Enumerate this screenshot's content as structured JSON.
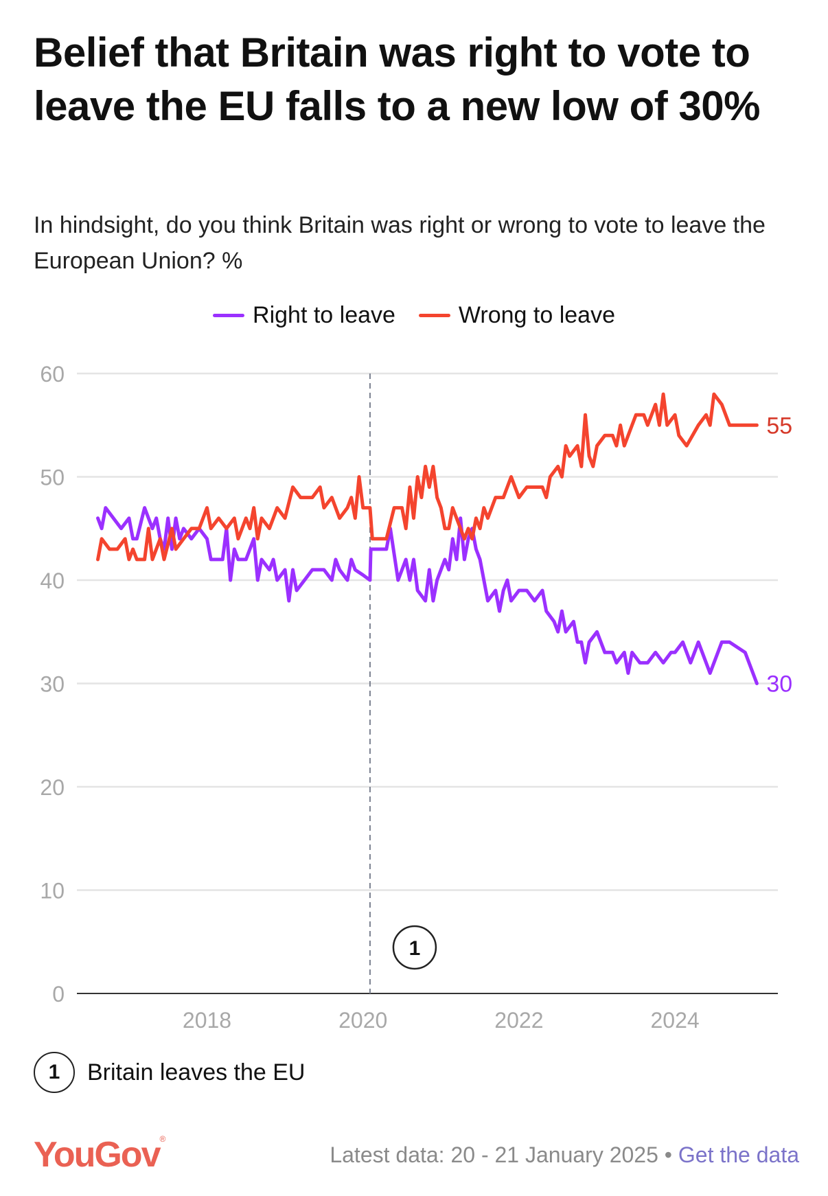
{
  "title": "Belief that Britain was right to vote to leave the EU falls to a new low of 30%",
  "subtitle": "In hindsight, do you think Britain was right or wrong to vote to leave the European Union? %",
  "footnote": {
    "number": "1",
    "text": "Britain leaves the EU"
  },
  "footer": {
    "logo": "YouGov",
    "latest": "Latest data: 20 - 21 January 2025",
    "separator": "•",
    "link": "Get the data"
  },
  "chart_data": {
    "type": "line",
    "title": "Belief that Britain was right to vote to leave the EU falls to a new low of 30%",
    "xlabel": "",
    "ylabel": "%",
    "ylim": [
      0,
      60
    ],
    "xlim": [
      2016.3,
      2025.3
    ],
    "yticks": [
      "0",
      "10",
      "20",
      "30",
      "40",
      "50",
      "60"
    ],
    "xticks": [
      "2018",
      "2020",
      "2022",
      "2024"
    ],
    "grid": true,
    "legend": "top-center",
    "annotations": [
      {
        "label": "1",
        "x": 2020.09,
        "text": "Britain leaves the EU"
      }
    ],
    "series": [
      {
        "name": "Right to leave",
        "color": "#9b30ff",
        "end_label": "30",
        "x": [
          2016.6,
          2016.65,
          2016.7,
          2016.8,
          2016.9,
          2017.0,
          2017.05,
          2017.1,
          2017.2,
          2017.3,
          2017.35,
          2017.4,
          2017.45,
          2017.5,
          2017.55,
          2017.6,
          2017.65,
          2017.7,
          2017.8,
          2017.9,
          2018.0,
          2018.05,
          2018.2,
          2018.25,
          2018.3,
          2018.35,
          2018.4,
          2018.5,
          2018.6,
          2018.65,
          2018.7,
          2018.8,
          2018.85,
          2018.9,
          2019.0,
          2019.05,
          2019.1,
          2019.15,
          2019.25,
          2019.35,
          2019.5,
          2019.6,
          2019.65,
          2019.7,
          2019.8,
          2019.85,
          2019.9,
          2020.0,
          2020.09,
          2020.1,
          2020.3,
          2020.35,
          2020.45,
          2020.55,
          2020.6,
          2020.65,
          2020.7,
          2020.8,
          2020.85,
          2020.9,
          2020.95,
          2021.0,
          2021.05,
          2021.1,
          2021.15,
          2021.2,
          2021.25,
          2021.3,
          2021.35,
          2021.4,
          2021.45,
          2021.5,
          2021.55,
          2021.6,
          2021.7,
          2021.75,
          2021.8,
          2021.85,
          2021.9,
          2022.0,
          2022.1,
          2022.2,
          2022.3,
          2022.35,
          2022.45,
          2022.5,
          2022.55,
          2022.6,
          2022.7,
          2022.75,
          2022.8,
          2022.85,
          2022.9,
          2023.0,
          2023.1,
          2023.2,
          2023.25,
          2023.35,
          2023.4,
          2023.45,
          2023.55,
          2023.65,
          2023.75,
          2023.85,
          2023.95,
          2024.0,
          2024.1,
          2024.2,
          2024.3,
          2024.45,
          2024.6,
          2024.7,
          2024.9,
          2025.05
        ],
        "values": [
          46,
          45,
          47,
          46,
          45,
          46,
          44,
          44,
          47,
          45,
          46,
          44,
          43,
          46,
          43,
          46,
          44,
          45,
          44,
          45,
          44,
          42,
          42,
          45,
          40,
          43,
          42,
          42,
          44,
          40,
          42,
          41,
          42,
          40,
          41,
          38,
          41,
          39,
          40,
          41,
          41,
          40,
          42,
          41,
          40,
          42,
          41,
          40.5,
          40,
          43,
          43,
          45,
          40,
          42,
          40,
          42,
          39,
          38,
          41,
          38,
          40,
          41,
          42,
          41,
          44,
          42,
          46,
          42,
          44,
          45,
          43,
          42,
          40,
          38,
          39,
          37,
          39,
          40,
          38,
          39,
          39,
          38,
          39,
          37,
          36,
          35,
          37,
          35,
          36,
          34,
          34,
          32,
          34,
          35,
          33,
          33,
          32,
          33,
          31,
          33,
          32,
          32,
          33,
          32,
          33,
          33,
          34,
          32,
          34,
          31,
          34,
          34,
          33,
          30
        ]
      },
      {
        "name": "Wrong to leave",
        "color": "#f4442e",
        "end_label": "55",
        "x": [
          2016.6,
          2016.65,
          2016.75,
          2016.85,
          2016.95,
          2017.0,
          2017.05,
          2017.1,
          2017.2,
          2017.25,
          2017.3,
          2017.4,
          2017.45,
          2017.55,
          2017.6,
          2017.7,
          2017.8,
          2017.9,
          2018.0,
          2018.05,
          2018.15,
          2018.25,
          2018.35,
          2018.4,
          2018.5,
          2018.55,
          2018.6,
          2018.65,
          2018.7,
          2018.8,
          2018.9,
          2019.0,
          2019.1,
          2019.2,
          2019.35,
          2019.45,
          2019.5,
          2019.6,
          2019.7,
          2019.8,
          2019.85,
          2019.9,
          2019.95,
          2020.0,
          2020.05,
          2020.09,
          2020.12,
          2020.3,
          2020.4,
          2020.5,
          2020.55,
          2020.6,
          2020.65,
          2020.7,
          2020.75,
          2020.8,
          2020.85,
          2020.9,
          2020.95,
          2021.0,
          2021.05,
          2021.1,
          2021.15,
          2021.2,
          2021.25,
          2021.3,
          2021.35,
          2021.4,
          2021.45,
          2021.5,
          2021.55,
          2021.6,
          2021.7,
          2021.8,
          2021.9,
          2022.0,
          2022.1,
          2022.2,
          2022.3,
          2022.35,
          2022.4,
          2022.5,
          2022.55,
          2022.6,
          2022.65,
          2022.75,
          2022.8,
          2022.85,
          2022.9,
          2022.95,
          2023.0,
          2023.1,
          2023.2,
          2023.25,
          2023.3,
          2023.35,
          2023.45,
          2023.5,
          2023.6,
          2023.65,
          2023.75,
          2023.8,
          2023.85,
          2023.9,
          2024.0,
          2024.05,
          2024.15,
          2024.3,
          2024.4,
          2024.45,
          2024.5,
          2024.6,
          2024.7,
          2025.05
        ],
        "values": [
          42,
          44,
          43,
          43,
          44,
          42,
          43,
          42,
          42,
          45,
          42,
          44,
          42,
          45,
          43,
          44,
          45,
          45,
          47,
          45,
          46,
          45,
          46,
          44,
          46,
          45,
          47,
          44,
          46,
          45,
          47,
          46,
          49,
          48,
          48,
          49,
          47,
          48,
          46,
          47,
          48,
          46,
          50,
          47,
          47,
          47,
          44,
          44,
          47,
          47,
          45,
          49,
          46,
          50,
          48,
          51,
          49,
          51,
          48,
          47,
          45,
          45,
          47,
          46,
          45,
          44,
          45,
          44,
          46,
          45,
          47,
          46,
          48,
          48,
          50,
          48,
          49,
          49,
          49,
          48,
          50,
          51,
          50,
          53,
          52,
          53,
          51,
          56,
          52,
          51,
          53,
          54,
          54,
          53,
          55,
          53,
          55,
          56,
          56,
          55,
          57,
          55,
          58,
          55,
          56,
          54,
          53,
          55,
          56,
          55,
          58,
          57,
          55,
          55
        ]
      }
    ]
  }
}
